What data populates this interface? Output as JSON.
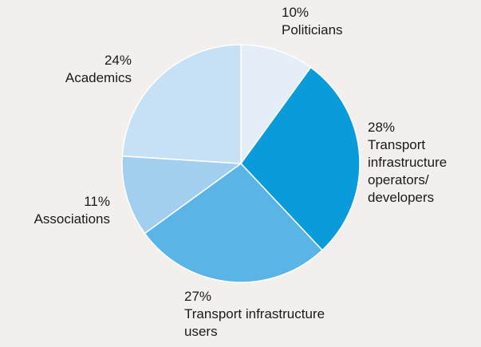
{
  "chart_data": {
    "type": "pie",
    "categories": [
      "Politicians",
      "Transport infrastructure operators/ developers",
      "Transport infrastructure users",
      "Associations",
      "Academics"
    ],
    "values": [
      10,
      28,
      27,
      11,
      24
    ],
    "value_labels": [
      "10%",
      "28%",
      "27%",
      "11%",
      "24%"
    ],
    "colors": [
      "#e4eef8",
      "#0a9bdb",
      "#5bb4e6",
      "#a2cff0",
      "#c6e1f5"
    ]
  }
}
